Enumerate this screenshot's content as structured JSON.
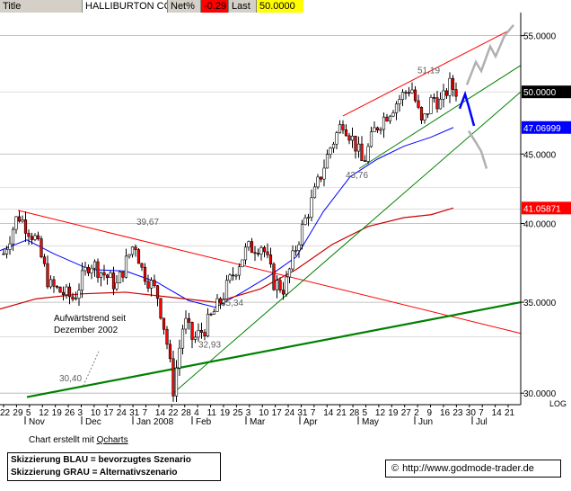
{
  "header": {
    "title_label": "Title",
    "title_value": "HALLIBURTON CO",
    "net_label": "Net%",
    "net_value": "-0.29",
    "last_label": "Last",
    "last_value": "50.0000"
  },
  "chart_data": {
    "type": "candlestick",
    "symbol": "HALLIBURTON CO",
    "y_ticks": [
      "55.0000",
      "45.0000",
      "40.0000",
      "35.0000",
      "30.0000"
    ],
    "y_range": [
      29.6,
      56.5
    ],
    "scale_label": "LOG",
    "price_markers": [
      {
        "label": "50.0000",
        "value": 50.0,
        "bg": "#000000",
        "fg": "#ffffff"
      },
      {
        "label": "47.06999",
        "value": 47.07,
        "bg": "#0000ff",
        "fg": "#ffffff"
      },
      {
        "label": "41.05871",
        "value": 41.06,
        "bg": "#ff0000",
        "fg": "#ffffff"
      }
    ],
    "x_labels": [
      "22",
      "29",
      "5",
      "12",
      "19",
      "26",
      "3",
      "10",
      "17",
      "24",
      "31",
      "7",
      "14",
      "22",
      "28",
      "4",
      "11",
      "19",
      "25",
      "3",
      "10",
      "17",
      "24",
      "31",
      "7",
      "14",
      "21",
      "28",
      "5",
      "12",
      "19",
      "27",
      "2",
      "9",
      "16",
      "23",
      "30",
      "7",
      "14",
      "21"
    ],
    "month_labels": [
      "Nov",
      "Dec",
      "Jan 2008",
      "Feb",
      "Mar",
      "Apr",
      "May",
      "Jun",
      "Jul"
    ],
    "annotations": [
      "51,19",
      "39,67",
      "43,76",
      "35,34",
      "32,93",
      "30,40"
    ],
    "trend_note": [
      "Aufwärtstrend seit",
      "Dezember 2002"
    ],
    "series_prices_approx": [
      {
        "period": "Oct 2007",
        "close": 38.0
      },
      {
        "period": "Nov 2007",
        "close": 35.8
      },
      {
        "period": "Dec 2007",
        "close": 38.8
      },
      {
        "period": "Jan 2008",
        "close": 31.0
      },
      {
        "period": "Feb 2008",
        "close": 36.5
      },
      {
        "period": "Mar 2008",
        "close": 38.5
      },
      {
        "period": "Apr 2008",
        "close": 46.5
      },
      {
        "period": "May 2008",
        "close": 48.5
      },
      {
        "period": "Jun 2008",
        "close": 50.0
      }
    ],
    "scenarios": [
      {
        "name": "Skizzierung BLAU",
        "meaning": "bevorzugtes Szenario",
        "color": "#0000ff"
      },
      {
        "name": "Skizzierung GRAU",
        "meaning": "Alternativszenario",
        "color": "#b0b0b0"
      }
    ],
    "colors": {
      "candle_up": "#ffffff",
      "candle_down": "#ff0000",
      "candle_body": "#000000",
      "ma_blue": "#0000ff",
      "ma_red": "#cc0000",
      "trend_green": "#008000",
      "trend_red": "#ff0000"
    }
  },
  "footer": {
    "credit_prefix": "Chart erstellt mit",
    "credit_link": "Qcharts",
    "legend_line1": "Skizzierung BLAU = bevorzugtes Szenario",
    "legend_line2": "Skizzierung GRAU = Alternativszenario",
    "url": "http://www.godmode-trader.de",
    "copyright_icon": "copyright-icon"
  }
}
